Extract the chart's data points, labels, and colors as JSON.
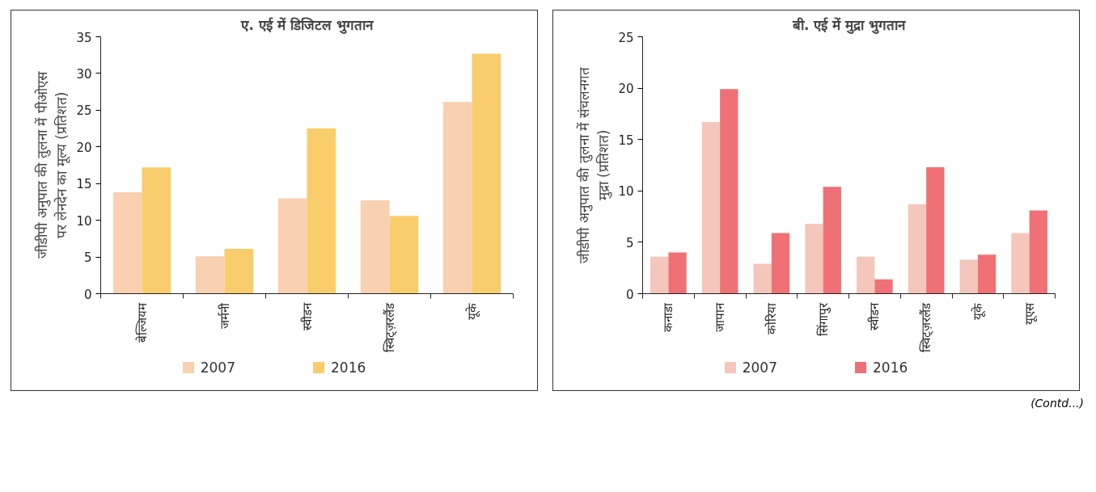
{
  "chart_data": [
    {
      "type": "bar",
      "title": "ए. एई में डिजिटल भुगतान",
      "ylabel": "जीडीपी अनुपात की तुलना में पीओएस\nपर लेनदेन का मूल्य (प्रतिशत)",
      "categories": [
        "बेल्जियम",
        "जर्मनी",
        "स्वीडन",
        "स्विट्ज़रलैंड",
        "यूके"
      ],
      "series": [
        {
          "name": "2007",
          "color": "#f9d0b0",
          "values": [
            13.8,
            5.1,
            13.0,
            12.7,
            26.1
          ]
        },
        {
          "name": "2016",
          "color": "#f9cd6c",
          "values": [
            17.2,
            6.1,
            22.5,
            10.6,
            32.7
          ]
        }
      ],
      "ylim": [
        0,
        35
      ],
      "yticks": [
        0,
        5,
        10,
        15,
        20,
        25,
        30,
        35
      ],
      "grid": false,
      "legend": "bottom"
    },
    {
      "type": "bar",
      "title": "बी. एई में मुद्रा भुगतान",
      "ylabel": "जीडीपी अनुपात की तुलना में संचलनगत\nमुद्रा (प्रतिशत)",
      "categories": [
        "कनाडा",
        "जापान",
        "कोरिया",
        "सिंगापुर",
        "स्वीडन",
        "स्विट्ज़रलैंड",
        "यूके",
        "यूएस"
      ],
      "series": [
        {
          "name": "2007",
          "color": "#f5c6bb",
          "values": [
            3.6,
            16.7,
            2.9,
            6.8,
            3.6,
            8.7,
            3.3,
            5.9
          ]
        },
        {
          "name": "2016",
          "color": "#ef7175",
          "values": [
            4.0,
            19.9,
            5.9,
            10.4,
            1.4,
            12.3,
            3.8,
            8.1
          ]
        }
      ],
      "ylim": [
        0,
        25
      ],
      "yticks": [
        0,
        5,
        10,
        15,
        20,
        25
      ],
      "grid": false,
      "legend": "bottom",
      "annotations": [
        "(Contd...)"
      ]
    }
  ]
}
